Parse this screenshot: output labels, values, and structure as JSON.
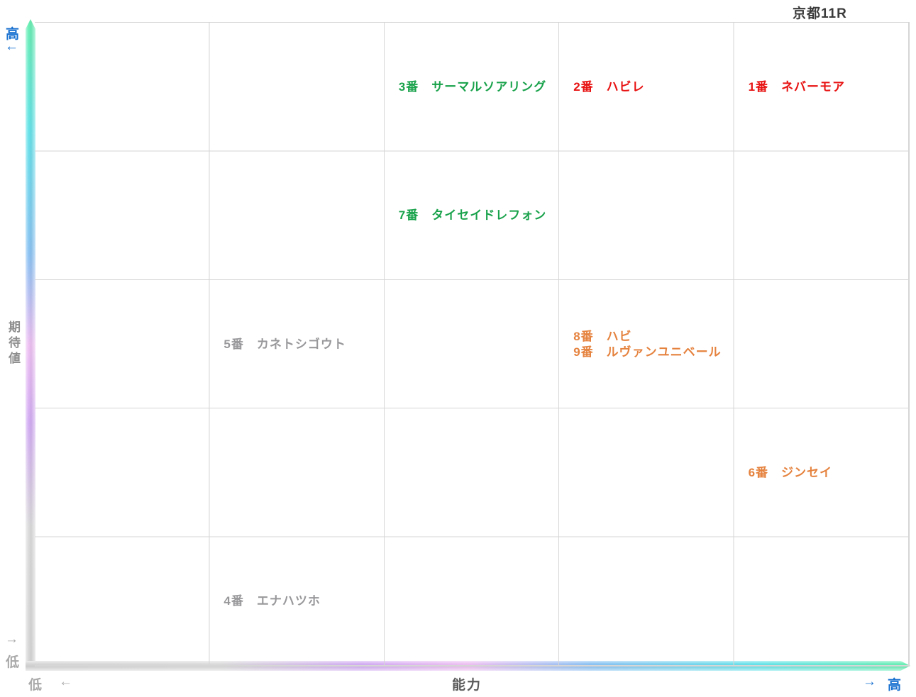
{
  "title": "京都11R",
  "axis_y": {
    "label": "期待値",
    "high_label": "高",
    "high_arrow": "←",
    "low_label": "低",
    "low_arrow": "→"
  },
  "axis_x": {
    "label": "能力",
    "low_label": "低",
    "low_arrow": "←",
    "high_label": "高",
    "high_arrow": "→"
  },
  "colors": {
    "green": "#19a24b",
    "red": "#e81212",
    "orange": "#e5823e",
    "gray": "#98989b",
    "axis-blue": "#1770d0",
    "axis-gray": "#a9a9a9",
    "axis-mid-gray": "#8e8e8e",
    "axis-dark-gray": "#5a5a5a",
    "grid-line": "#d6d6d6"
  },
  "gradient_low_to_high": [
    "#d7d7d7 0%",
    "#dcdcdc 22%",
    "#d3aef4 38%",
    "#efc2f3 50%",
    "#8dc4f4 64%",
    "#68e4ea 83%",
    "#6cf0b4 100%"
  ],
  "grid": {
    "rows": 5,
    "cols": 5
  },
  "horses": [
    {
      "num": "3番",
      "name": "サーマルソアリング",
      "row": 0,
      "col": 2,
      "color": "green"
    },
    {
      "num": "2番",
      "name": "ハビレ",
      "row": 0,
      "col": 3,
      "color": "red"
    },
    {
      "num": "1番",
      "name": "ネバーモア",
      "row": 0,
      "col": 4,
      "color": "red"
    },
    {
      "num": "7番",
      "name": "タイセイドレフォン",
      "row": 1,
      "col": 2,
      "color": "green"
    },
    {
      "num": "5番",
      "name": "カネトシゴウト",
      "row": 2,
      "col": 1,
      "color": "gray"
    },
    {
      "num": "8番",
      "name": "ハビ",
      "row": 2,
      "col": 3,
      "color": "orange"
    },
    {
      "num": "9番",
      "name": "ルヴァンユニベール",
      "row": 2,
      "col": 3,
      "color": "orange"
    },
    {
      "num": "6番",
      "name": "ジンセイ",
      "row": 3,
      "col": 4,
      "color": "orange"
    },
    {
      "num": "4番",
      "name": "エナハツホ",
      "row": 4,
      "col": 1,
      "color": "gray"
    }
  ],
  "chart_data": {
    "type": "scatter",
    "title": "京都11R",
    "xlabel": "能力",
    "ylabel": "期待値",
    "x_range_labels": [
      "低",
      "高"
    ],
    "y_range_labels": [
      "低",
      "高"
    ],
    "grid": "5x5 cells, qualitative axes, gridlines on",
    "points": [
      {
        "label": "3番 サーマルソアリング",
        "x": 3,
        "y": 5,
        "color": "#19a24b"
      },
      {
        "label": "2番 ハビレ",
        "x": 4,
        "y": 5,
        "color": "#e81212"
      },
      {
        "label": "1番 ネバーモア",
        "x": 5,
        "y": 5,
        "color": "#e81212"
      },
      {
        "label": "7番 タイセイドレフォン",
        "x": 3,
        "y": 4,
        "color": "#19a24b"
      },
      {
        "label": "5番 カネトシゴウト",
        "x": 2,
        "y": 3,
        "color": "#98989b"
      },
      {
        "label": "8番 ハビ",
        "x": 4,
        "y": 3,
        "color": "#e5823e"
      },
      {
        "label": "9番 ルヴァンユニベール",
        "x": 4,
        "y": 3,
        "color": "#e5823e"
      },
      {
        "label": "6番 ジンセイ",
        "x": 5,
        "y": 2,
        "color": "#e5823e"
      },
      {
        "label": "4番 エナハツホ",
        "x": 2,
        "y": 1,
        "color": "#98989b"
      }
    ]
  }
}
